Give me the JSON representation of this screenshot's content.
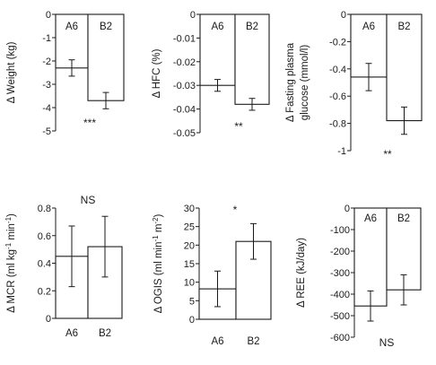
{
  "chart_data": [
    {
      "type": "bar",
      "categories": [
        "A6",
        "B2"
      ],
      "values": [
        -2.3,
        -3.7
      ],
      "errors": [
        0.35,
        0.35
      ],
      "ylabel": "Δ Weight (kg)",
      "ylim": [
        -5,
        0
      ],
      "yticks": [
        0,
        -1,
        -2,
        -3,
        -4,
        -5
      ],
      "tick_labels": [
        "0",
        "-1",
        "-2",
        "-3",
        "-4",
        "-5"
      ],
      "category_labels_inside_top": true,
      "significance": "***",
      "significance_placement": "below"
    },
    {
      "type": "bar",
      "categories": [
        "A6",
        "B2"
      ],
      "values": [
        -0.03,
        -0.038
      ],
      "errors": [
        0.0025,
        0.0025
      ],
      "ylabel": "Δ HFC (%)",
      "ylim": [
        -0.05,
        0
      ],
      "yticks": [
        0,
        -0.01,
        -0.02,
        -0.03,
        -0.04,
        -0.05
      ],
      "tick_labels": [
        "0",
        "-0.01",
        "-0.02",
        "-0.03",
        "-0.04",
        "-0.05"
      ],
      "category_labels_inside_top": true,
      "significance": "**",
      "significance_placement": "below"
    },
    {
      "type": "bar",
      "categories": [
        "A6",
        "B2"
      ],
      "values": [
        -0.46,
        -0.78
      ],
      "errors": [
        0.1,
        0.1
      ],
      "ylabel_lines": [
        "Δ Fasting plasma",
        "glucose (mmol/l)"
      ],
      "ylim": [
        -1,
        0
      ],
      "yticks": [
        0,
        -0.2,
        -0.4,
        -0.6,
        -0.8,
        -1
      ],
      "tick_labels": [
        "0",
        "-0.2",
        "-0.4",
        "-0.6",
        "-0.8",
        "-1"
      ],
      "category_labels_inside_top": true,
      "significance": "**",
      "significance_placement": "below"
    },
    {
      "type": "bar",
      "categories": [
        "A6",
        "B2"
      ],
      "values": [
        0.45,
        0.52
      ],
      "errors": [
        0.22,
        0.22
      ],
      "ylabel_parts": [
        "Δ MCR (ml kg",
        "-1",
        " min",
        "-1",
        ")"
      ],
      "ylim": [
        0,
        0.8
      ],
      "yticks": [
        0,
        0.2,
        0.4,
        0.6,
        0.8
      ],
      "tick_labels": [
        "0",
        "0.2",
        "0.4",
        "0.6",
        "0.8"
      ],
      "category_labels_inside_top": false,
      "significance": "NS",
      "significance_placement": "above"
    },
    {
      "type": "bar",
      "categories": [
        "A6",
        "B2"
      ],
      "values": [
        8.2,
        21
      ],
      "errors": [
        4.8,
        4.8
      ],
      "ylabel_parts": [
        "Δ OGIS (ml min",
        "-1",
        " m",
        "-2",
        ")"
      ],
      "ylim": [
        0,
        30
      ],
      "yticks": [
        0,
        5,
        10,
        15,
        20,
        25,
        30
      ],
      "tick_labels": [
        "0",
        "5",
        "10",
        "15",
        "20",
        "25",
        "30"
      ],
      "category_labels_inside_top": false,
      "significance": "*",
      "significance_placement": "above"
    },
    {
      "type": "bar",
      "categories": [
        "A6",
        "B2"
      ],
      "values": [
        -455,
        -380
      ],
      "errors": [
        70,
        70
      ],
      "ylabel": "Δ REE (kJ/day)",
      "ylim": [
        -600,
        0
      ],
      "yticks": [
        0,
        -100,
        -200,
        -300,
        -400,
        -500,
        -600
      ],
      "tick_labels": [
        "0",
        "-100",
        "-200",
        "-300",
        "-400",
        "-500",
        "-600"
      ],
      "category_labels_inside_top": true,
      "significance": "NS",
      "significance_placement": "below"
    }
  ]
}
